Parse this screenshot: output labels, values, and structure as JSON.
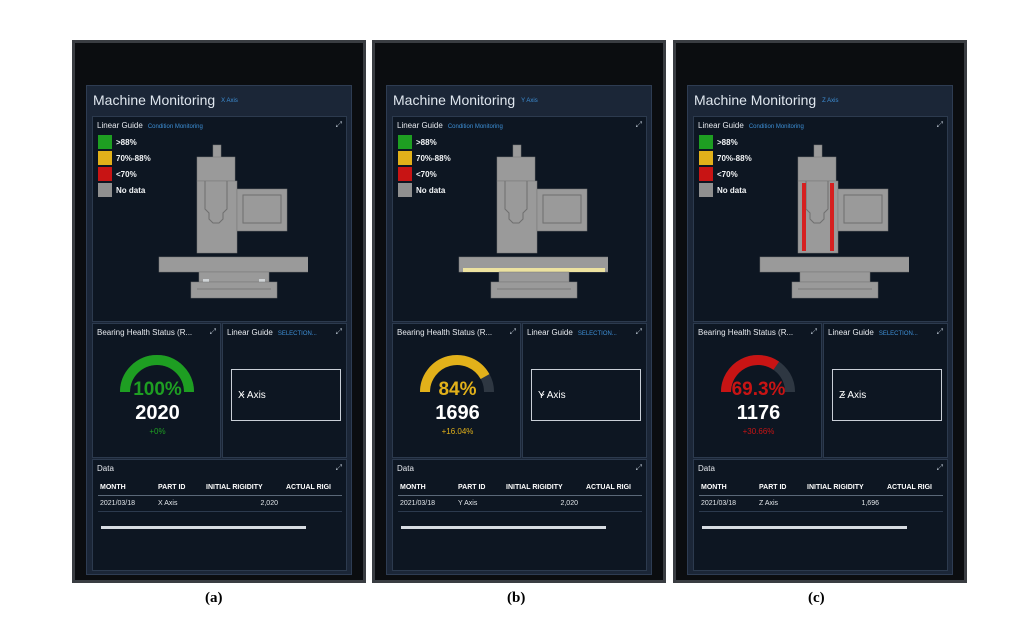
{
  "colors": {
    "green": "#1e9e22",
    "yellow": "#e2b11a",
    "red": "#c81414",
    "grey": "#8f8f8f",
    "highlight_yellow": "#ece2a0",
    "highlight_red": "#d62020"
  },
  "screens": [
    {
      "caption": "(a)",
      "title": "Machine Monitoring",
      "axis_label": "X Axis",
      "linear_guide": {
        "title": "Linear Guide",
        "subtitle": "Condition Monitoring"
      },
      "legend": [
        {
          "label": ">88%",
          "color": "#1e9e22"
        },
        {
          "label": "70%-88%",
          "color": "#e2b11a"
        },
        {
          "label": "<70%",
          "color": "#c81414"
        },
        {
          "label": "No data",
          "color": "#8f8f8f"
        }
      ],
      "highlight": "x",
      "bearing": {
        "title": "Bearing Health Status (R...",
        "percent_label": "100%",
        "percent": 100,
        "count": "2020",
        "delta": "+0%",
        "color": "#1e9e22"
      },
      "selector": {
        "title": "Linear Guide",
        "subtitle": "SELECTION...",
        "value": "X Axis"
      },
      "data": {
        "title": "Data",
        "columns": [
          "MONTH",
          "PART ID",
          "INITIAL RIGIDITY",
          "ACTUAL RIGI"
        ],
        "rows": [
          [
            "2021/03/18",
            "X Axis",
            "2,020",
            ""
          ]
        ]
      }
    },
    {
      "caption": "(b)",
      "title": "Machine Monitoring",
      "axis_label": "Y Axis",
      "linear_guide": {
        "title": "Linear Guide",
        "subtitle": "Condition Monitoring"
      },
      "legend": [
        {
          "label": ">88%",
          "color": "#1e9e22"
        },
        {
          "label": "70%-88%",
          "color": "#e2b11a"
        },
        {
          "label": "<70%",
          "color": "#c81414"
        },
        {
          "label": "No data",
          "color": "#8f8f8f"
        }
      ],
      "highlight": "y",
      "bearing": {
        "title": "Bearing Health Status (R...",
        "percent_label": "84%",
        "percent": 84,
        "count": "1696",
        "delta": "+16.04%",
        "color": "#e2b11a"
      },
      "selector": {
        "title": "Linear Guide",
        "subtitle": "SELECTION...",
        "value": "Y Axis"
      },
      "data": {
        "title": "Data",
        "columns": [
          "MONTH",
          "PART ID",
          "INITIAL RIGIDITY",
          "ACTUAL RIGI"
        ],
        "rows": [
          [
            "2021/03/18",
            "Y Axis",
            "2,020",
            ""
          ]
        ]
      }
    },
    {
      "caption": "(c)",
      "title": "Machine Monitoring",
      "axis_label": "Z Axis",
      "linear_guide": {
        "title": "Linear Guide",
        "subtitle": "Condition Monitoring"
      },
      "legend": [
        {
          "label": ">88%",
          "color": "#1e9e22"
        },
        {
          "label": "70%-88%",
          "color": "#e2b11a"
        },
        {
          "label": "<70%",
          "color": "#c81414"
        },
        {
          "label": "No data",
          "color": "#8f8f8f"
        }
      ],
      "highlight": "z",
      "bearing": {
        "title": "Bearing Health Status (R...",
        "percent_label": "69.3%",
        "percent": 69.3,
        "count": "1176",
        "delta": "+30.66%",
        "color": "#c81414"
      },
      "selector": {
        "title": "Linear Guide",
        "subtitle": "SELECTION...",
        "value": "Z Axis"
      },
      "data": {
        "title": "Data",
        "columns": [
          "MONTH",
          "PART ID",
          "INITIAL RIGIDITY",
          "ACTUAL RIGI"
        ],
        "rows": [
          [
            "2021/03/18",
            "Z Axis",
            "1,696",
            ""
          ]
        ]
      }
    }
  ]
}
